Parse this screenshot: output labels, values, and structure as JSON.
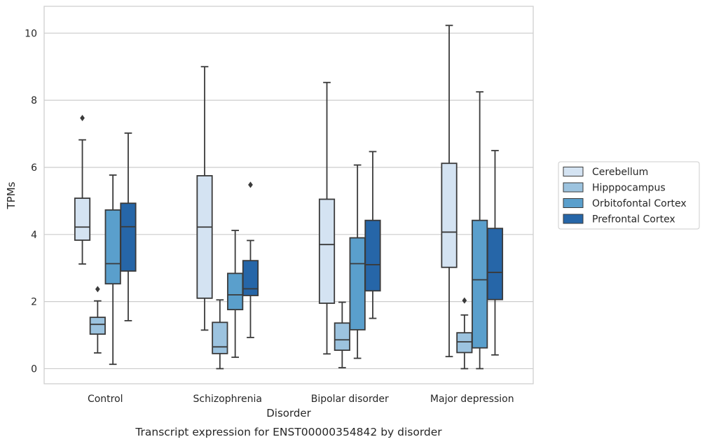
{
  "chart_data": {
    "type": "boxplot",
    "xlabel": "Disorder",
    "ylabel": "TPMs",
    "caption": "Transcript expression for ENST00000354842 by disorder",
    "ylim": [
      -0.45,
      10.8
    ],
    "yticks": [
      0,
      2,
      4,
      6,
      8,
      10
    ],
    "grid": "horizontal",
    "legend_position": "right",
    "categories": [
      "Control",
      "Schizophrenia",
      "Bipolar disorder",
      "Major depression"
    ],
    "series": [
      {
        "name": "Cerebellum",
        "color": "#d4e3f2",
        "boxes": [
          {
            "whisker_low": 3.12,
            "q1": 3.83,
            "median": 4.22,
            "q3": 5.08,
            "whisker_high": 6.82,
            "outliers": [
              7.47
            ]
          },
          {
            "whisker_low": 1.15,
            "q1": 2.1,
            "median": 4.22,
            "q3": 5.75,
            "whisker_high": 9.0,
            "outliers": []
          },
          {
            "whisker_low": 0.44,
            "q1": 1.95,
            "median": 3.7,
            "q3": 5.05,
            "whisker_high": 8.53,
            "outliers": []
          },
          {
            "whisker_low": 0.36,
            "q1": 3.02,
            "median": 4.07,
            "q3": 6.12,
            "whisker_high": 10.23,
            "outliers": []
          }
        ]
      },
      {
        "name": "Hipppocampus",
        "color": "#9cc3df",
        "boxes": [
          {
            "whisker_low": 0.47,
            "q1": 1.03,
            "median": 1.32,
            "q3": 1.53,
            "whisker_high": 2.02,
            "outliers": [
              2.37
            ]
          },
          {
            "whisker_low": 0.0,
            "q1": 0.45,
            "median": 0.65,
            "q3": 1.38,
            "whisker_high": 2.05,
            "outliers": []
          },
          {
            "whisker_low": 0.03,
            "q1": 0.55,
            "median": 0.86,
            "q3": 1.36,
            "whisker_high": 1.98,
            "outliers": []
          },
          {
            "whisker_low": 0.0,
            "q1": 0.48,
            "median": 0.8,
            "q3": 1.07,
            "whisker_high": 1.6,
            "outliers": [
              2.03
            ]
          }
        ]
      },
      {
        "name": "Orbitofontal Cortex",
        "color": "#5a9fcc",
        "boxes": [
          {
            "whisker_low": 0.13,
            "q1": 2.53,
            "median": 3.13,
            "q3": 4.73,
            "whisker_high": 5.77,
            "outliers": []
          },
          {
            "whisker_low": 0.34,
            "q1": 1.76,
            "median": 2.2,
            "q3": 2.84,
            "whisker_high": 4.12,
            "outliers": []
          },
          {
            "whisker_low": 0.31,
            "q1": 1.16,
            "median": 3.13,
            "q3": 3.9,
            "whisker_high": 6.07,
            "outliers": []
          },
          {
            "whisker_low": 0.0,
            "q1": 0.62,
            "median": 2.65,
            "q3": 4.42,
            "whisker_high": 8.25,
            "outliers": []
          }
        ]
      },
      {
        "name": "Prefrontal Cortex",
        "color": "#2666a8",
        "boxes": [
          {
            "whisker_low": 1.43,
            "q1": 2.91,
            "median": 4.23,
            "q3": 4.93,
            "whisker_high": 7.02,
            "outliers": []
          },
          {
            "whisker_low": 0.93,
            "q1": 2.18,
            "median": 2.38,
            "q3": 3.22,
            "whisker_high": 3.82,
            "outliers": [
              5.48
            ]
          },
          {
            "whisker_low": 1.5,
            "q1": 2.32,
            "median": 3.1,
            "q3": 4.42,
            "whisker_high": 6.47,
            "outliers": []
          },
          {
            "whisker_low": 0.41,
            "q1": 2.06,
            "median": 2.87,
            "q3": 4.18,
            "whisker_high": 6.5,
            "outliers": []
          }
        ]
      }
    ]
  }
}
